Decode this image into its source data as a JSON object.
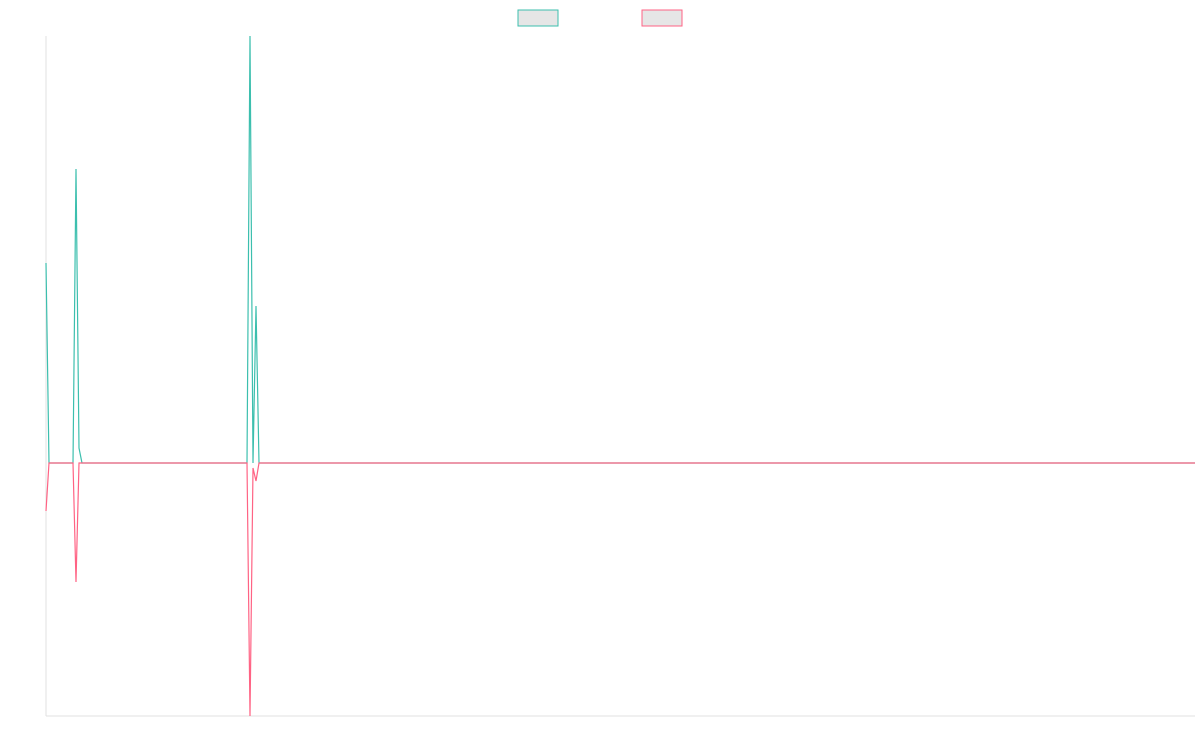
{
  "chart_data": {
    "type": "line",
    "x": [
      0,
      1,
      9,
      10,
      11,
      12,
      67,
      68,
      69,
      70,
      71,
      383
    ],
    "xlim": [
      0,
      383
    ],
    "ylim": [
      -253,
      427
    ],
    "series": [
      {
        "color": "#3cbfae",
        "values": [
          200,
          0,
          0,
          294,
          15,
          0,
          0,
          427,
          0,
          157,
          0,
          0
        ]
      },
      {
        "color": "#ff6384",
        "values": [
          -48,
          0,
          0,
          -119,
          0,
          0,
          0,
          -253,
          -5,
          -18,
          0,
          0
        ]
      }
    ],
    "legend": "top"
  }
}
